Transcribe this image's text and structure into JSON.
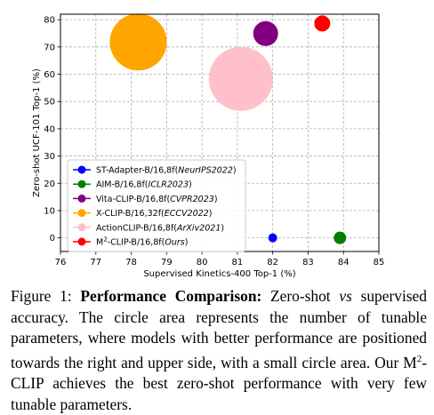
{
  "chart_data": {
    "type": "scatter",
    "xlabel": "Supervised Kinetics-400 Top-1 (%)",
    "ylabel": "Zero-shot UCF-101 Top-1 (%)",
    "xlim": [
      76,
      85
    ],
    "ylim": [
      -5,
      82
    ],
    "x_ticks": [
      76,
      77,
      78,
      79,
      80,
      81,
      82,
      83,
      84,
      85
    ],
    "y_ticks": [
      0,
      10,
      20,
      30,
      40,
      50,
      60,
      70,
      80
    ],
    "grid": true,
    "grid_style": "dashed",
    "legend_placement": "lower-left",
    "series": [
      {
        "name": "ST-Adapter-B/16,8f(NeurIPS2022)",
        "name_plain": "ST-Adapter-B/16,8f(",
        "name_venue": "NeurIPS2022",
        "name_end": ")",
        "x": 82.0,
        "y": 0.0,
        "size": 5,
        "color": "#0000ff"
      },
      {
        "name": "AIM-B/16,8f(ICLR2023)",
        "name_plain": "AIM-B/16,8f(",
        "name_venue": "ICLR2023",
        "name_end": ")",
        "x": 83.9,
        "y": 0.0,
        "size": 7,
        "color": "#008000"
      },
      {
        "name": "Vita-CLIP-B/16,8f(CVPR2023)",
        "name_plain": "Vita-CLIP-B/16,8f(",
        "name_venue": "CVPR2023",
        "name_end": ")",
        "x": 81.8,
        "y": 74.9,
        "size": 14,
        "color": "#800080"
      },
      {
        "name": "X-CLIP-B/16,32f(ECCV2022)",
        "name_plain": "X-CLIP-B/16,32f(",
        "name_venue": "ECCV2022",
        "name_end": ")",
        "x": 78.2,
        "y": 71.8,
        "size": 32,
        "color": "#ffa500"
      },
      {
        "name": "ActionCLIP-B/16,8f(ArXiv2021)",
        "name_plain": "ActionCLIP-B/16,8f(",
        "name_venue": "ArXiv2021",
        "name_end": ")",
        "x": 81.1,
        "y": 58.3,
        "size": 36,
        "color": "#ffc0cb"
      },
      {
        "name": "M2-CLIP-B/16,8f(Ours)",
        "name_plain": "M",
        "name_sup": "2",
        "name_rest": "-CLIP-B/16,8f(",
        "name_venue": "Ours",
        "name_end": ")",
        "x": 83.4,
        "y": 78.6,
        "size": 9,
        "color": "#ff0000"
      }
    ]
  },
  "caption": {
    "label": "Figure 1: ",
    "bold": "Performance Comparison:",
    "p1": " Zero-shot ",
    "vs": "vs",
    "p2": " supervised accuracy. The circle area represents the number of tunable parameters, where models with better performance are positioned towards the right and upper side, with a small circle area. Our M",
    "sup": "2",
    "p3": "-CLIP achieves the best zero-shot performance with very few tunable parameters."
  }
}
